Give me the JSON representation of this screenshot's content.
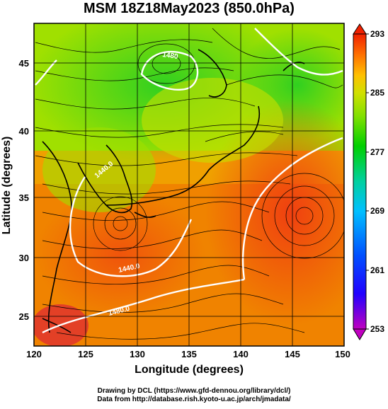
{
  "figure": {
    "title": "MSM 18Z18May2023 (850.0hPa)",
    "xlabel": "Longitude (degrees)",
    "ylabel": "Latitude  (degrees)",
    "footer_line1": "Drawing by DCL (https://www.gfd-dennou.org/library/dcl/)",
    "footer_line2": "Data from http://database.rish.kyoto-u.ac.jp/arch/jmadata/"
  },
  "map": {
    "lon_range": [
      120,
      150
    ],
    "lat_range": [
      22.4,
      47.6
    ],
    "x_ticks": [
      "120",
      "125",
      "130",
      "135",
      "140",
      "145",
      "150"
    ],
    "y_ticks": [
      "25",
      "30",
      "35",
      "40",
      "45"
    ],
    "contour_labels": [
      "1480",
      "1440.0",
      "1480.0",
      "1440.0"
    ]
  },
  "colorbar": {
    "tick_labels": [
      "293",
      "285",
      "277",
      "269",
      "261",
      "253"
    ],
    "colors": [
      "#c000c0",
      "#0000ff",
      "#00a0ff",
      "#00d0a0",
      "#00d000",
      "#40e000",
      "#c0e000",
      "#ffd000",
      "#ff9000",
      "#ff5000",
      "#f02000"
    ]
  }
}
